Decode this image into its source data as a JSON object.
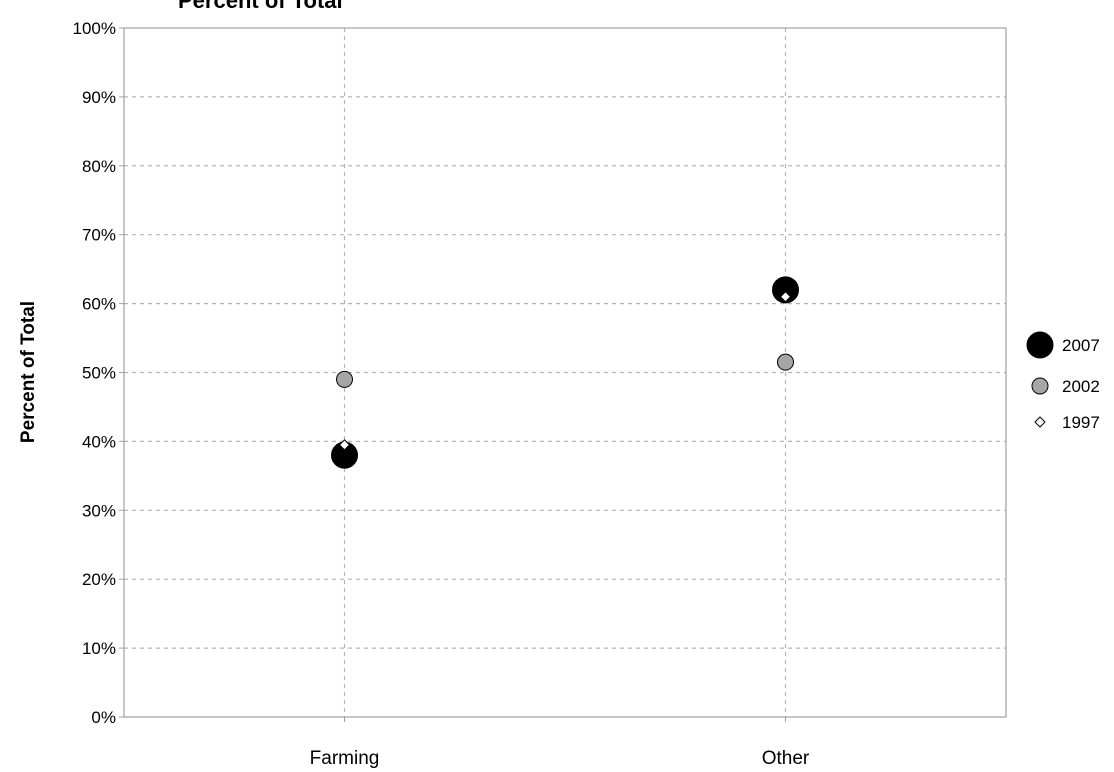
{
  "chart_data": {
    "type": "scatter",
    "title": "Percent of Total",
    "ylabel": "Percent of Total",
    "xlabel": "",
    "categories": [
      "Farming",
      "Other"
    ],
    "ylim": [
      0,
      100
    ],
    "ytick_step": 10,
    "ytick_suffix": "%",
    "grid": true,
    "legend_position": "right",
    "series": [
      {
        "name": "2007",
        "values": [
          38,
          62
        ],
        "marker": "circle-large",
        "fill": "#000000",
        "stroke": "#000000"
      },
      {
        "name": "2002",
        "values": [
          49,
          51.5
        ],
        "marker": "circle-medium",
        "fill": "#a6a6a6",
        "stroke": "#000000"
      },
      {
        "name": "1997",
        "values": [
          39.5,
          61
        ],
        "marker": "diamond",
        "fill": "#ffffff",
        "stroke": "#000000"
      }
    ],
    "draw_order": [
      1,
      0,
      2
    ]
  }
}
